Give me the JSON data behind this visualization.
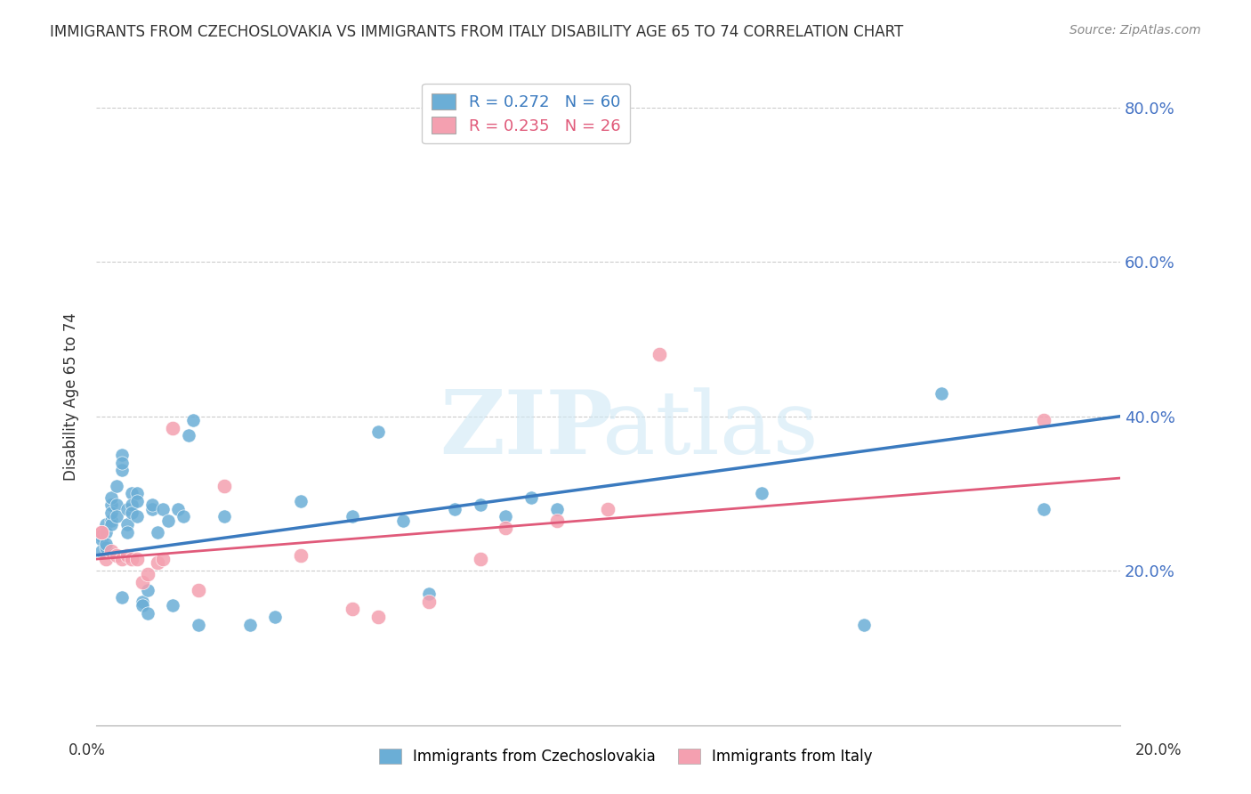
{
  "title": "IMMIGRANTS FROM CZECHOSLOVAKIA VS IMMIGRANTS FROM ITALY DISABILITY AGE 65 TO 74 CORRELATION CHART",
  "source": "Source: ZipAtlas.com",
  "ylabel": "Disability Age 65 to 74",
  "right_yticks": [
    "20.0%",
    "40.0%",
    "60.0%",
    "80.0%"
  ],
  "right_ytick_vals": [
    0.2,
    0.4,
    0.6,
    0.8
  ],
  "xlim": [
    0.0,
    0.2
  ],
  "ylim": [
    0.0,
    0.85
  ],
  "color_blue": "#6baed6",
  "color_pink": "#f4a0b0",
  "line_blue": "#3a7abf",
  "line_pink": "#e05a7a",
  "blue_x": [
    0.001,
    0.001,
    0.001,
    0.002,
    0.002,
    0.002,
    0.002,
    0.003,
    0.003,
    0.003,
    0.003,
    0.003,
    0.004,
    0.004,
    0.004,
    0.005,
    0.005,
    0.005,
    0.005,
    0.006,
    0.006,
    0.006,
    0.007,
    0.007,
    0.007,
    0.008,
    0.008,
    0.008,
    0.009,
    0.009,
    0.01,
    0.01,
    0.011,
    0.011,
    0.012,
    0.013,
    0.014,
    0.015,
    0.016,
    0.017,
    0.018,
    0.019,
    0.02,
    0.025,
    0.03,
    0.035,
    0.04,
    0.05,
    0.055,
    0.06,
    0.065,
    0.07,
    0.075,
    0.08,
    0.085,
    0.09,
    0.13,
    0.15,
    0.165,
    0.185
  ],
  "blue_y": [
    0.245,
    0.24,
    0.225,
    0.23,
    0.26,
    0.25,
    0.235,
    0.265,
    0.285,
    0.295,
    0.26,
    0.275,
    0.31,
    0.285,
    0.27,
    0.33,
    0.35,
    0.34,
    0.165,
    0.28,
    0.26,
    0.25,
    0.3,
    0.285,
    0.275,
    0.3,
    0.29,
    0.27,
    0.16,
    0.155,
    0.175,
    0.145,
    0.28,
    0.285,
    0.25,
    0.28,
    0.265,
    0.155,
    0.28,
    0.27,
    0.375,
    0.395,
    0.13,
    0.27,
    0.13,
    0.14,
    0.29,
    0.27,
    0.38,
    0.265,
    0.17,
    0.28,
    0.285,
    0.27,
    0.295,
    0.28,
    0.3,
    0.13,
    0.43,
    0.28
  ],
  "pink_x": [
    0.001,
    0.001,
    0.002,
    0.003,
    0.004,
    0.005,
    0.006,
    0.007,
    0.008,
    0.009,
    0.01,
    0.012,
    0.013,
    0.015,
    0.02,
    0.025,
    0.04,
    0.05,
    0.055,
    0.065,
    0.075,
    0.08,
    0.09,
    0.1,
    0.11,
    0.185
  ],
  "pink_y": [
    0.25,
    0.25,
    0.215,
    0.225,
    0.22,
    0.215,
    0.22,
    0.215,
    0.215,
    0.185,
    0.195,
    0.21,
    0.215,
    0.385,
    0.175,
    0.31,
    0.22,
    0.15,
    0.14,
    0.16,
    0.215,
    0.255,
    0.265,
    0.28,
    0.48,
    0.395
  ],
  "blue_trendline_x": [
    0.0,
    0.2
  ],
  "blue_trendline_y": [
    0.22,
    0.4
  ],
  "pink_trendline_x": [
    0.0,
    0.2
  ],
  "pink_trendline_y": [
    0.215,
    0.32
  ]
}
